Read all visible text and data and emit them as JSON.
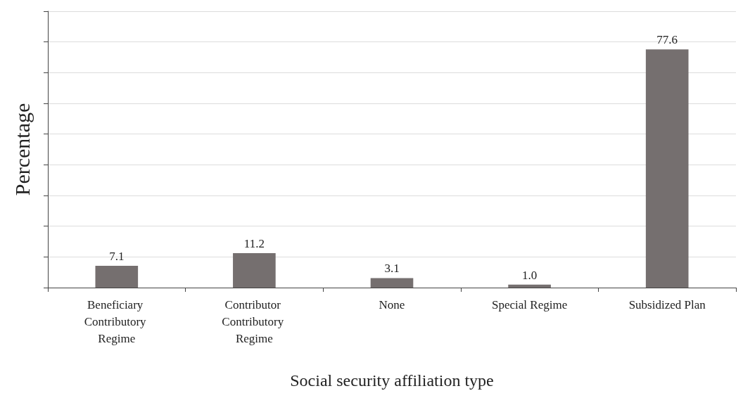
{
  "chart_data": {
    "type": "bar",
    "xlabel": "Social security affiliation type",
    "ylabel": "Percentage",
    "categories": [
      "Beneficiary Contributory Regime",
      "Contributor Contributory Regime",
      "None",
      "Special Regime",
      "Subsidized Plan"
    ],
    "values": [
      7.1,
      11.2,
      3.1,
      1.0,
      77.6
    ],
    "color": "#756f6f",
    "value_labels": [
      "7.1",
      "11.2",
      "3.1",
      "1.0",
      "77.6"
    ],
    "ylim": [
      0,
      90
    ],
    "yticks": [
      {
        "value": 0,
        "label": null
      },
      {
        "value": 10,
        "label": null
      },
      {
        "value": 20,
        "label": null
      },
      {
        "value": 30,
        "label": null
      },
      {
        "value": 40,
        "label": null
      },
      {
        "value": 50,
        "label": null
      },
      {
        "value": 60,
        "label": null
      },
      {
        "value": 70,
        "label": null
      },
      {
        "value": 80,
        "label": null
      },
      {
        "value": 90,
        "label": null
      }
    ],
    "tick_labels": "x",
    "grid": "y"
  }
}
